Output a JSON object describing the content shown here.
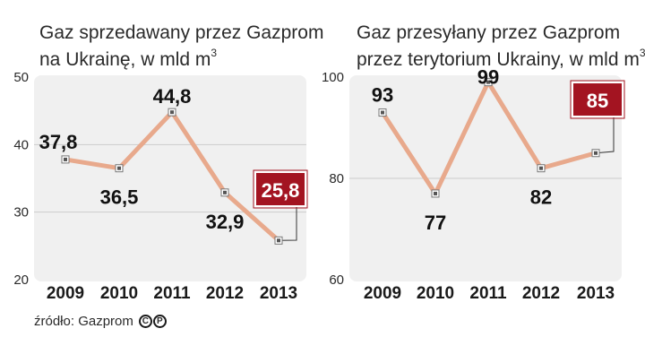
{
  "charts_meta": {
    "left": {
      "title_line1": "Gaz sprzedawany przez Gazprom",
      "title_line2": "na Ukrainę, w mld m",
      "title_sup": "3"
    },
    "right": {
      "title_line1": "Gaz przesyłany przez Gazprom",
      "title_line2": "przez terytorium Ukrainy, w mld m",
      "title_sup": "3"
    }
  },
  "source": {
    "text": "źródło: Gazprom",
    "icons": [
      "C",
      "P"
    ],
    "icon_names": [
      "copyright-icon",
      "p-circle-icon"
    ]
  },
  "colors": {
    "line": "#e8a98c",
    "panel": "#f0f0f0",
    "highlight_box": "#a31421",
    "marker_fill": "#ffffff",
    "marker_dot": "#555555",
    "grid": "#cccccc"
  },
  "chart_data": [
    {
      "type": "line",
      "title": "Gaz sprzedawany przez Gazprom na Ukrainę, w mld m3",
      "x": [
        "2009",
        "2010",
        "2011",
        "2012",
        "2013"
      ],
      "values": [
        37.8,
        36.5,
        44.8,
        32.9,
        25.8
      ],
      "data_labels": [
        "37,8",
        "36,5",
        "44,8",
        "32,9",
        "25,8"
      ],
      "highlighted_index": 4,
      "ylim": [
        20,
        50
      ],
      "yticks": [
        20,
        30,
        40,
        50
      ],
      "grid": true
    },
    {
      "type": "line",
      "title": "Gaz przesyłany przez Gazprom przez terytorium Ukrainy, w mld m3",
      "x": [
        "2009",
        "2010",
        "2011",
        "2012",
        "2013"
      ],
      "values": [
        93,
        77,
        99,
        82,
        85
      ],
      "data_labels": [
        "93",
        "77",
        "99",
        "82",
        "85"
      ],
      "highlighted_index": 4,
      "ylim": [
        60,
        100
      ],
      "yticks": [
        60,
        80,
        100
      ],
      "grid": true
    }
  ]
}
